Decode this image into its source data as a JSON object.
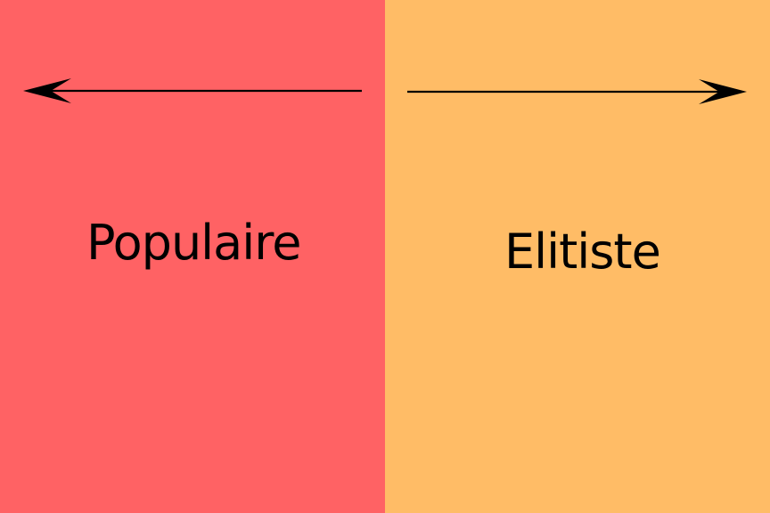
{
  "left": {
    "label": "Populaire",
    "color": "#FF6264",
    "arrow_direction": "left"
  },
  "right": {
    "label": "Elitiste",
    "color": "#FFBC66",
    "arrow_direction": "right"
  },
  "arrow_color": "#000000"
}
